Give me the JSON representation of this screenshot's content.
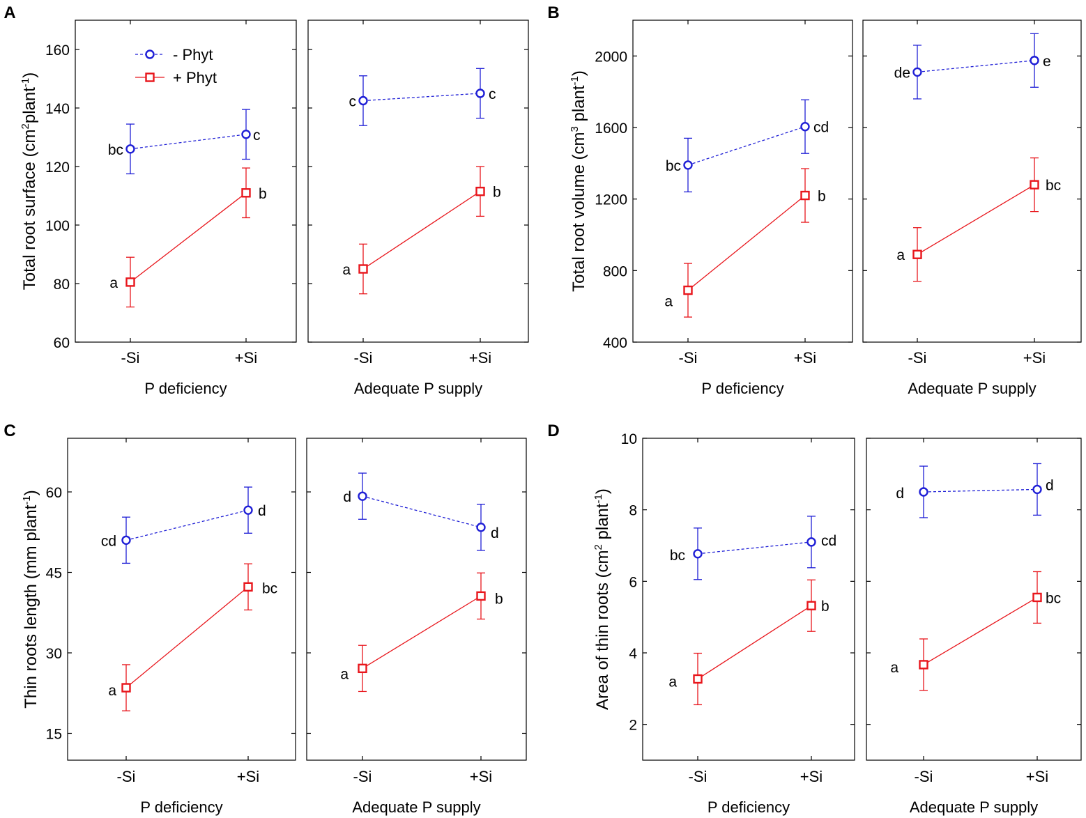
{
  "chart_data": [
    {
      "panel_letter": "A",
      "type": "line",
      "ylabel": "Total root surface (cm²plant⁻¹)",
      "ylabel_main": "Total root surface (cm",
      "ylabel_sup1": "2",
      "ylabel_mid": "plant",
      "ylabel_sup2": "-1",
      "ylabel_end": ")",
      "ylim": [
        60,
        170
      ],
      "yticks": [
        60,
        80,
        100,
        120,
        140,
        160
      ],
      "categories": [
        "-Si",
        "+Si"
      ],
      "groups": [
        {
          "xlabel": "P deficiency",
          "series": [
            {
              "name": "- Phyt",
              "values": [
                126,
                131
              ],
              "errors": [
                8.5,
                8.5
              ],
              "letters": [
                "bc",
                "c"
              ]
            },
            {
              "name": "+ Phyt",
              "values": [
                80.5,
                111
              ],
              "errors": [
                8.5,
                8.5
              ],
              "letters": [
                "a",
                "b"
              ]
            }
          ]
        },
        {
          "xlabel": "Adequate P supply",
          "series": [
            {
              "name": "- Phyt",
              "values": [
                142.5,
                145
              ],
              "errors": [
                8.5,
                8.5
              ],
              "letters": [
                "c",
                "c"
              ]
            },
            {
              "name": "+ Phyt",
              "values": [
                85,
                111.5
              ],
              "errors": [
                8.5,
                8.5
              ],
              "letters": [
                "a",
                "b"
              ]
            }
          ]
        }
      ]
    },
    {
      "panel_letter": "B",
      "type": "line",
      "ylabel": "Total root volume (cm³ plant⁻¹)",
      "ylabel_main": "Total root volume (cm",
      "ylabel_sup1": "3",
      "ylabel_mid": " plant",
      "ylabel_sup2": "-1",
      "ylabel_end": ")",
      "ylim": [
        400,
        2200
      ],
      "yticks": [
        400,
        800,
        1200,
        1600,
        2000
      ],
      "categories": [
        "-Si",
        "+Si"
      ],
      "groups": [
        {
          "xlabel": "P deficiency",
          "series": [
            {
              "name": "- Phyt",
              "values": [
                1390,
                1605
              ],
              "errors": [
                150,
                150
              ],
              "letters": [
                "bc",
                "cd"
              ]
            },
            {
              "name": "+ Phyt",
              "values": [
                690,
                1220
              ],
              "errors": [
                150,
                150
              ],
              "letters": [
                "a",
                "b"
              ]
            }
          ]
        },
        {
          "xlabel": "Adequate P supply",
          "series": [
            {
              "name": "- Phyt",
              "values": [
                1910,
                1975
              ],
              "errors": [
                150,
                150
              ],
              "letters": [
                "de",
                "e"
              ]
            },
            {
              "name": "+ Phyt",
              "values": [
                890,
                1280
              ],
              "errors": [
                150,
                150
              ],
              "letters": [
                "a",
                "bc"
              ]
            }
          ]
        }
      ]
    },
    {
      "panel_letter": "C",
      "type": "line",
      "ylabel": "Thin roots length (mm plant⁻¹)",
      "ylabel_main": "Thin roots length (mm plant",
      "ylabel_sup1": "",
      "ylabel_mid": "",
      "ylabel_sup2": "-1",
      "ylabel_end": ")",
      "ylim": [
        10,
        70
      ],
      "yticks": [
        15,
        30,
        45,
        60
      ],
      "categories": [
        "-Si",
        "+Si"
      ],
      "groups": [
        {
          "xlabel": "P deficiency",
          "series": [
            {
              "name": "- Phyt",
              "values": [
                51,
                56.6
              ],
              "errors": [
                4.3,
                4.3
              ],
              "letters": [
                "cd",
                "d"
              ]
            },
            {
              "name": "+ Phyt",
              "values": [
                23.5,
                42.3
              ],
              "errors": [
                4.3,
                4.3
              ],
              "letters": [
                "a",
                "bc"
              ]
            }
          ]
        },
        {
          "xlabel": "Adequate P supply",
          "series": [
            {
              "name": "- Phyt",
              "values": [
                59.2,
                53.4
              ],
              "errors": [
                4.3,
                4.3
              ],
              "letters": [
                "d",
                "d"
              ]
            },
            {
              "name": "+ Phyt",
              "values": [
                27.1,
                40.6
              ],
              "errors": [
                4.3,
                4.3
              ],
              "letters": [
                "a",
                "b"
              ]
            }
          ]
        }
      ]
    },
    {
      "panel_letter": "D",
      "type": "line",
      "ylabel": "Area of thin roots (cm² plant⁻¹)",
      "ylabel_main": "Area of thin roots (cm",
      "ylabel_sup1": "2",
      "ylabel_mid": " plant",
      "ylabel_sup2": "-1",
      "ylabel_end": ")",
      "ylim": [
        1,
        10
      ],
      "yticks": [
        2,
        4,
        6,
        8,
        10
      ],
      "categories": [
        "-Si",
        "+Si"
      ],
      "groups": [
        {
          "xlabel": "P deficiency",
          "series": [
            {
              "name": "- Phyt",
              "values": [
                6.77,
                7.1
              ],
              "errors": [
                0.72,
                0.72
              ],
              "letters": [
                "bc",
                "cd"
              ]
            },
            {
              "name": "+ Phyt",
              "values": [
                3.27,
                5.32
              ],
              "errors": [
                0.72,
                0.72
              ],
              "letters": [
                "a",
                "b"
              ]
            }
          ]
        },
        {
          "xlabel": "Adequate P supply",
          "series": [
            {
              "name": "- Phyt",
              "values": [
                8.5,
                8.57
              ],
              "errors": [
                0.72,
                0.72
              ],
              "letters": [
                "d",
                "d"
              ]
            },
            {
              "name": "+ Phyt",
              "values": [
                3.67,
                5.55
              ],
              "errors": [
                0.72,
                0.72
              ],
              "letters": [
                "a",
                "bc"
              ]
            }
          ]
        }
      ]
    }
  ],
  "legend": {
    "placement": "top-left of panel A",
    "items": [
      {
        "label": "- Phyt",
        "marker": "circle",
        "color": "#1f1fd6",
        "style": "dashed"
      },
      {
        "label": "+ Phyt",
        "marker": "square",
        "color": "#e8161c",
        "style": "solid"
      }
    ]
  },
  "colors": {
    "minus_phyt": "#1f1fd6",
    "plus_phyt": "#e8161c"
  }
}
